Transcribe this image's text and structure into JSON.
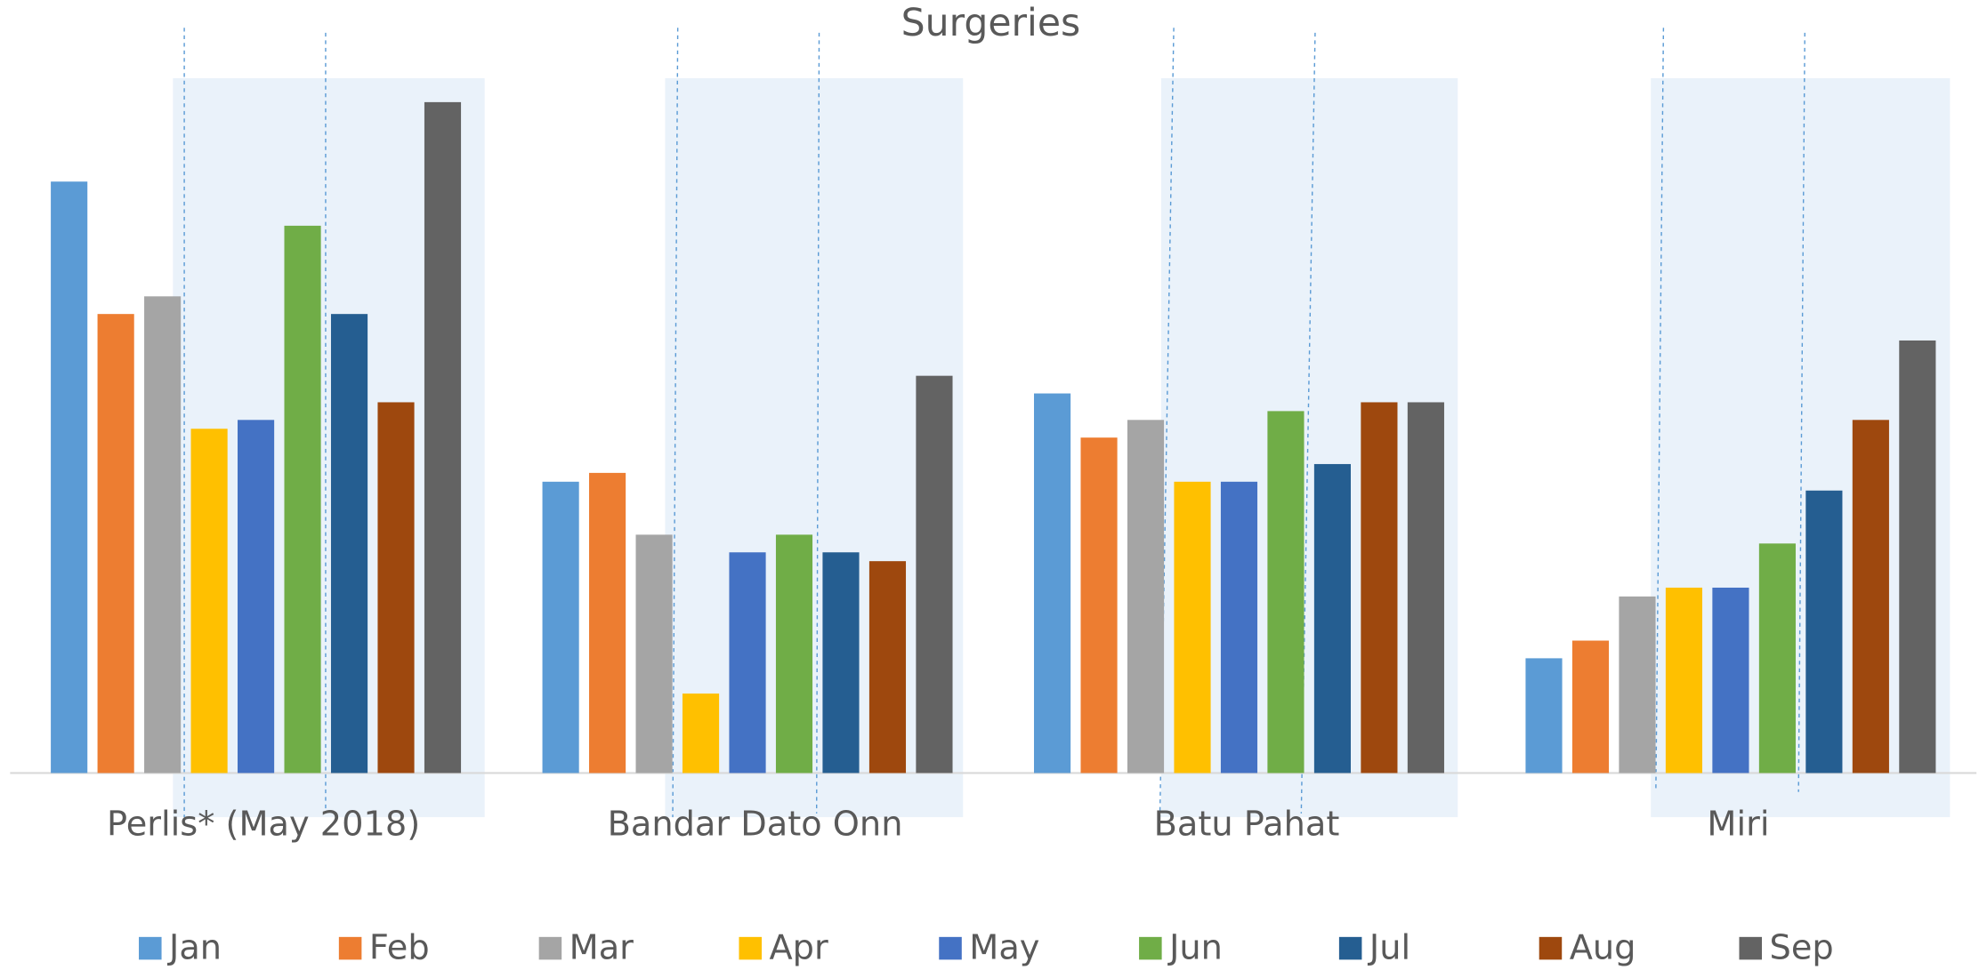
{
  "chart_data": {
    "type": "bar",
    "title": "Surgeries",
    "categories": [
      "Perlis* (May 2018)",
      "Bandar Dato Onn",
      "Batu Pahat",
      "Miri"
    ],
    "series": [
      {
        "name": "Jan",
        "color": "#5b9bd5",
        "values": [
          67,
          33,
          43,
          13
        ]
      },
      {
        "name": "Feb",
        "color": "#ed7d31",
        "values": [
          52,
          34,
          38,
          15
        ]
      },
      {
        "name": "Mar",
        "color": "#a5a5a5",
        "values": [
          54,
          27,
          40,
          20
        ]
      },
      {
        "name": "Apr",
        "color": "#ffc000",
        "values": [
          39,
          9,
          33,
          21
        ]
      },
      {
        "name": "May",
        "color": "#4472c4",
        "values": [
          40,
          25,
          33,
          21
        ]
      },
      {
        "name": "Jun",
        "color": "#70ad47",
        "values": [
          62,
          27,
          41,
          26
        ]
      },
      {
        "name": "Jul",
        "color": "#255e91",
        "values": [
          52,
          25,
          35,
          32
        ]
      },
      {
        "name": "Aug",
        "color": "#9e480e",
        "values": [
          42,
          24,
          42,
          40
        ]
      },
      {
        "name": "Sep",
        "color": "#636363",
        "values": [
          76,
          45,
          42,
          49
        ]
      }
    ],
    "ylim": [
      0,
      80
    ]
  }
}
